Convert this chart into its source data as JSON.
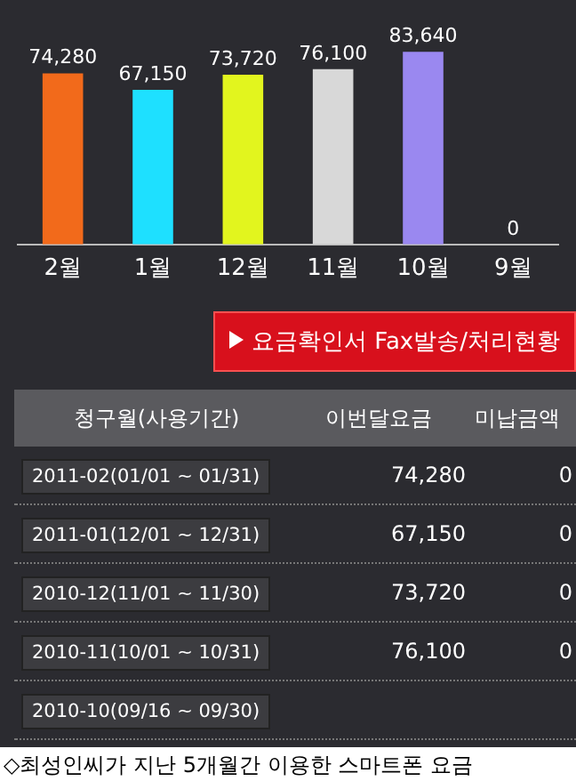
{
  "chart_data": {
    "type": "bar",
    "categories": [
      "2월",
      "1월",
      "12월",
      "11월",
      "10월",
      "9월"
    ],
    "values": [
      74280,
      67150,
      73720,
      76100,
      83640,
      0
    ],
    "colors": [
      "#f26a1b",
      "#1ee0ff",
      "#e2f51e",
      "#d8d8d8",
      "#9a88f0",
      "#9a88f0"
    ],
    "value_labels": [
      "74,280",
      "67,150",
      "73,720",
      "76,100",
      "83,640",
      "0"
    ],
    "legend": false,
    "annotations": [
      "요금확인서 Fax발송/처리현황",
      "청구월(사용기간)",
      "이번달요금",
      "미납금액",
      "2011-02(01/01 ~ 01/31)",
      "74,280",
      "0",
      "2011-01(12/01 ~ 12/31)",
      "67,150",
      "0",
      "2010-12(11/01 ~ 11/30)",
      "73,720",
      "0",
      "2010-11(10/01 ~ 10/31)",
      "76,100",
      "0",
      "2010-10(09/16 ~ 09/30)",
      "◇최성인씨가 지난 5개월간 이용한 스마트폰 요금"
    ]
  }
}
